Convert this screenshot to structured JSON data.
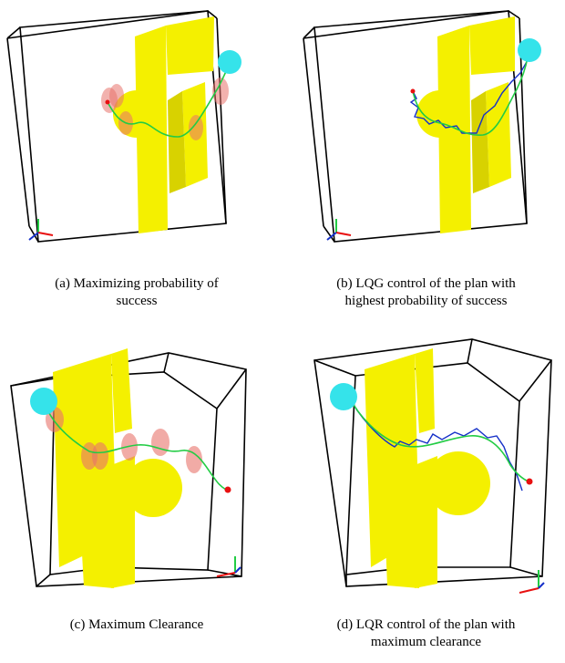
{
  "panels": [
    {
      "id": "a",
      "caption_line1": "(a) Maximizing probability of",
      "caption_line2": "success"
    },
    {
      "id": "b",
      "caption_line1": "(b) LQG control of the plan with",
      "caption_line2": "highest probability of success"
    },
    {
      "id": "c",
      "caption_line1": "(c) Maximum Clearance",
      "caption_line2": ""
    },
    {
      "id": "d",
      "caption_line1": "(d) LQR control of the plan with",
      "caption_line2": "maximum clearance"
    }
  ],
  "colors": {
    "obstacle": "#f4f000",
    "obstacle_shade": "#d8d200",
    "goal_sphere": "#35e3ea",
    "covariance_ellipse": "#e8736b",
    "planned_path": "#22cc44",
    "executed_path": "#1530c8",
    "start_point": "#e81010",
    "workspace_box": "#000000"
  }
}
